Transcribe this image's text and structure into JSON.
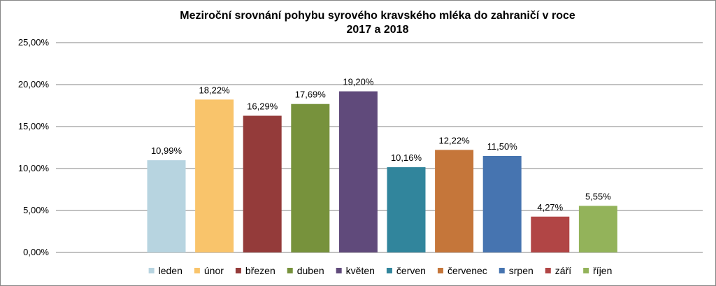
{
  "chart_data": {
    "type": "bar",
    "title_lines": [
      "Meziroční srovnání pohybu syrového kravského mléka do zahraničí v roce",
      "2017 a 2018"
    ],
    "categories": [
      "leden",
      "únor",
      "březen",
      "duben",
      "květen",
      "červen",
      "červenec",
      "srpen",
      "září",
      "říjen"
    ],
    "values": [
      10.99,
      18.22,
      16.29,
      17.69,
      19.2,
      10.16,
      12.22,
      11.5,
      4.27,
      5.55
    ],
    "value_labels": [
      "10,99%",
      "18,22%",
      "16,29%",
      "17,69%",
      "19,20%",
      "10,16%",
      "12,22%",
      "11,50%",
      "4,27%",
      "5,55%"
    ],
    "colors": [
      "#B7D4E0",
      "#F9C46B",
      "#943B3A",
      "#77923C",
      "#604A7B",
      "#31859C",
      "#C5763A",
      "#4674B0",
      "#B14545",
      "#93B35A"
    ],
    "ylim": [
      0,
      25
    ],
    "y_ticks": [
      0,
      5,
      10,
      15,
      20,
      25
    ],
    "y_tick_labels": [
      "0,00%",
      "5,00%",
      "10,00%",
      "15,00%",
      "20,00%",
      "25,00%"
    ],
    "grid": true,
    "legend": "bottom",
    "xlabel": "",
    "ylabel": ""
  }
}
